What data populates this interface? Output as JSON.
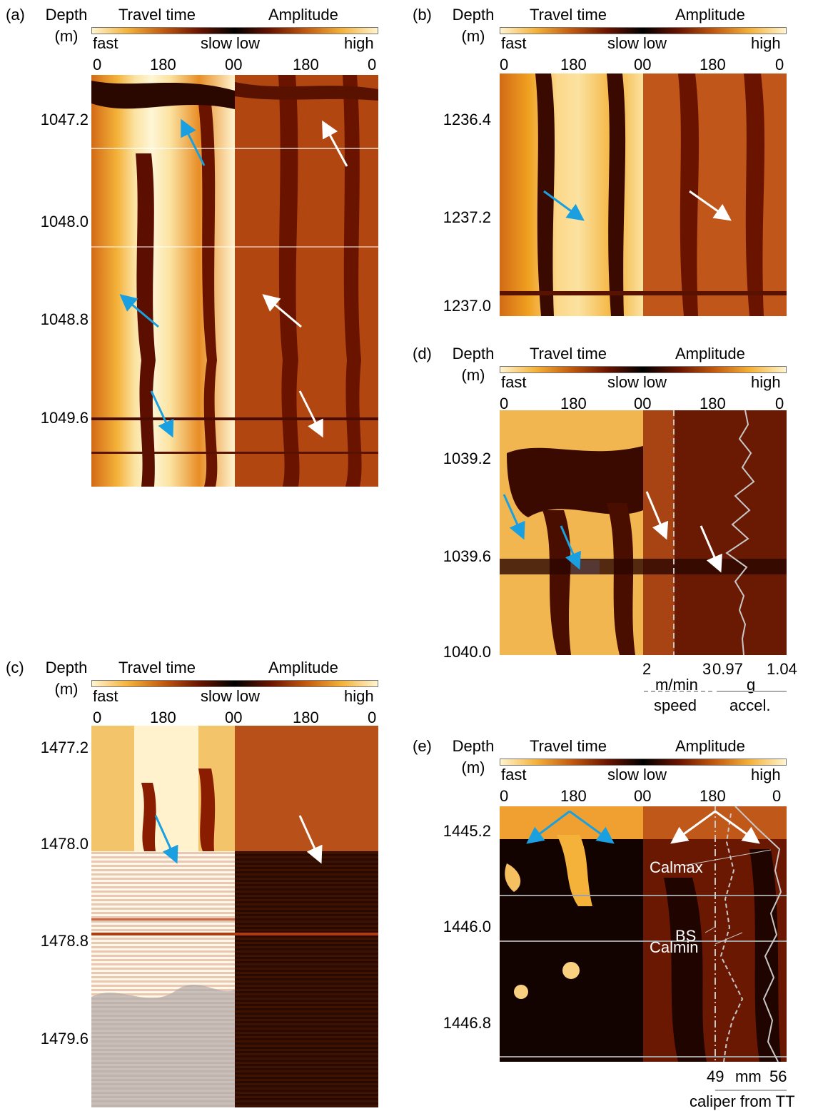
{
  "shared": {
    "depth_header_line1": "Depth",
    "depth_header_line2": "(m)",
    "travel_time_label": "Travel time",
    "amplitude_label": "Amplitude",
    "fast_label": "fast",
    "slow_label": "slow",
    "low_label": "low",
    "high_label": "high",
    "tick_0": "0",
    "tick_180": "180",
    "tick_00": "00",
    "tick_180b": "180",
    "tick_0b": "0"
  },
  "colors": {
    "pale_yellow": "#fff6d6",
    "orange": "#f0a020",
    "dark_red": "#8a1c00",
    "black": "#000000",
    "blue_arrow": "#1aa0e0",
    "white_arrow": "#ffffff",
    "curve": "#c8c8c8"
  },
  "panels": [
    {
      "id": "a",
      "label": "(a)",
      "depths": [
        "1047.2",
        "1048.0",
        "1048.8",
        "1049.6"
      ]
    },
    {
      "id": "b",
      "label": "(b)",
      "depths": [
        "1236.4",
        "1237.2",
        "1237.0"
      ]
    },
    {
      "id": "c",
      "label": "(c)",
      "depths": [
        "1477.2",
        "1478.0",
        "1478.8",
        "1479.6"
      ]
    },
    {
      "id": "d",
      "label": "(d)",
      "depths": [
        "1039.2",
        "1039.6",
        "1040.0"
      ],
      "axes": {
        "speed_min": "2",
        "speed_max": "3",
        "speed_unit": "m/min",
        "speed_label": "speed",
        "accel_min": "0.97",
        "accel_max": "1.04",
        "accel_unit": "g",
        "accel_label": "accel."
      }
    },
    {
      "id": "e",
      "label": "(e)",
      "depths": [
        "1445.2",
        "1446.0",
        "1446.8"
      ],
      "annotations": [
        "Calmax",
        "BS",
        "Calmin"
      ],
      "axes": {
        "cal_min": "49",
        "cal_unit": "mm",
        "cal_max": "56",
        "cal_label": "caliper from TT"
      }
    }
  ]
}
